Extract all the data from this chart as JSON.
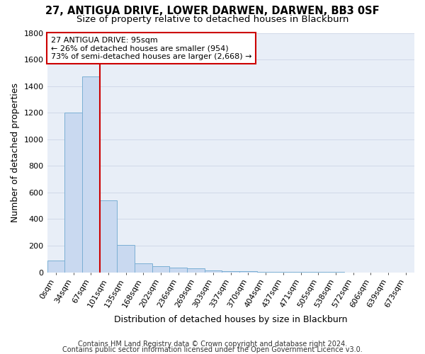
{
  "title": "27, ANTIGUA DRIVE, LOWER DARWEN, DARWEN, BB3 0SF",
  "subtitle": "Size of property relative to detached houses in Blackburn",
  "xlabel": "Distribution of detached houses by size in Blackburn",
  "ylabel": "Number of detached properties",
  "footer_line1": "Contains HM Land Registry data © Crown copyright and database right 2024.",
  "footer_line2": "Contains public sector information licensed under the Open Government Licence v3.0.",
  "bin_labels": [
    "0sqm",
    "34sqm",
    "67sqm",
    "101sqm",
    "135sqm",
    "168sqm",
    "202sqm",
    "236sqm",
    "269sqm",
    "303sqm",
    "337sqm",
    "370sqm",
    "404sqm",
    "437sqm",
    "471sqm",
    "505sqm",
    "538sqm",
    "572sqm",
    "606sqm",
    "639sqm",
    "673sqm"
  ],
  "bar_values": [
    90,
    1200,
    1470,
    540,
    205,
    65,
    48,
    35,
    28,
    15,
    10,
    8,
    5,
    3,
    2,
    1,
    1,
    0,
    0,
    0,
    0
  ],
  "bar_color": "#c9d9f0",
  "bar_edge_color": "#7bafd4",
  "grid_color": "#d0d8e8",
  "background_color": "#e8eef7",
  "annotation_box_color": "#ffffff",
  "annotation_border_color": "#cc0000",
  "marker_line_color": "#cc0000",
  "marker_bar_index": 2,
  "annotation_text_line1": "27 ANTIGUA DRIVE: 95sqm",
  "annotation_text_line2": "← 26% of detached houses are smaller (954)",
  "annotation_text_line3": "73% of semi-detached houses are larger (2,668) →",
  "ylim": [
    0,
    1800
  ],
  "yticks": [
    0,
    200,
    400,
    600,
    800,
    1000,
    1200,
    1400,
    1600,
    1800
  ],
  "title_fontsize": 10.5,
  "subtitle_fontsize": 9.5,
  "axis_label_fontsize": 9,
  "tick_fontsize": 8,
  "annotation_fontsize": 8,
  "footer_fontsize": 7
}
